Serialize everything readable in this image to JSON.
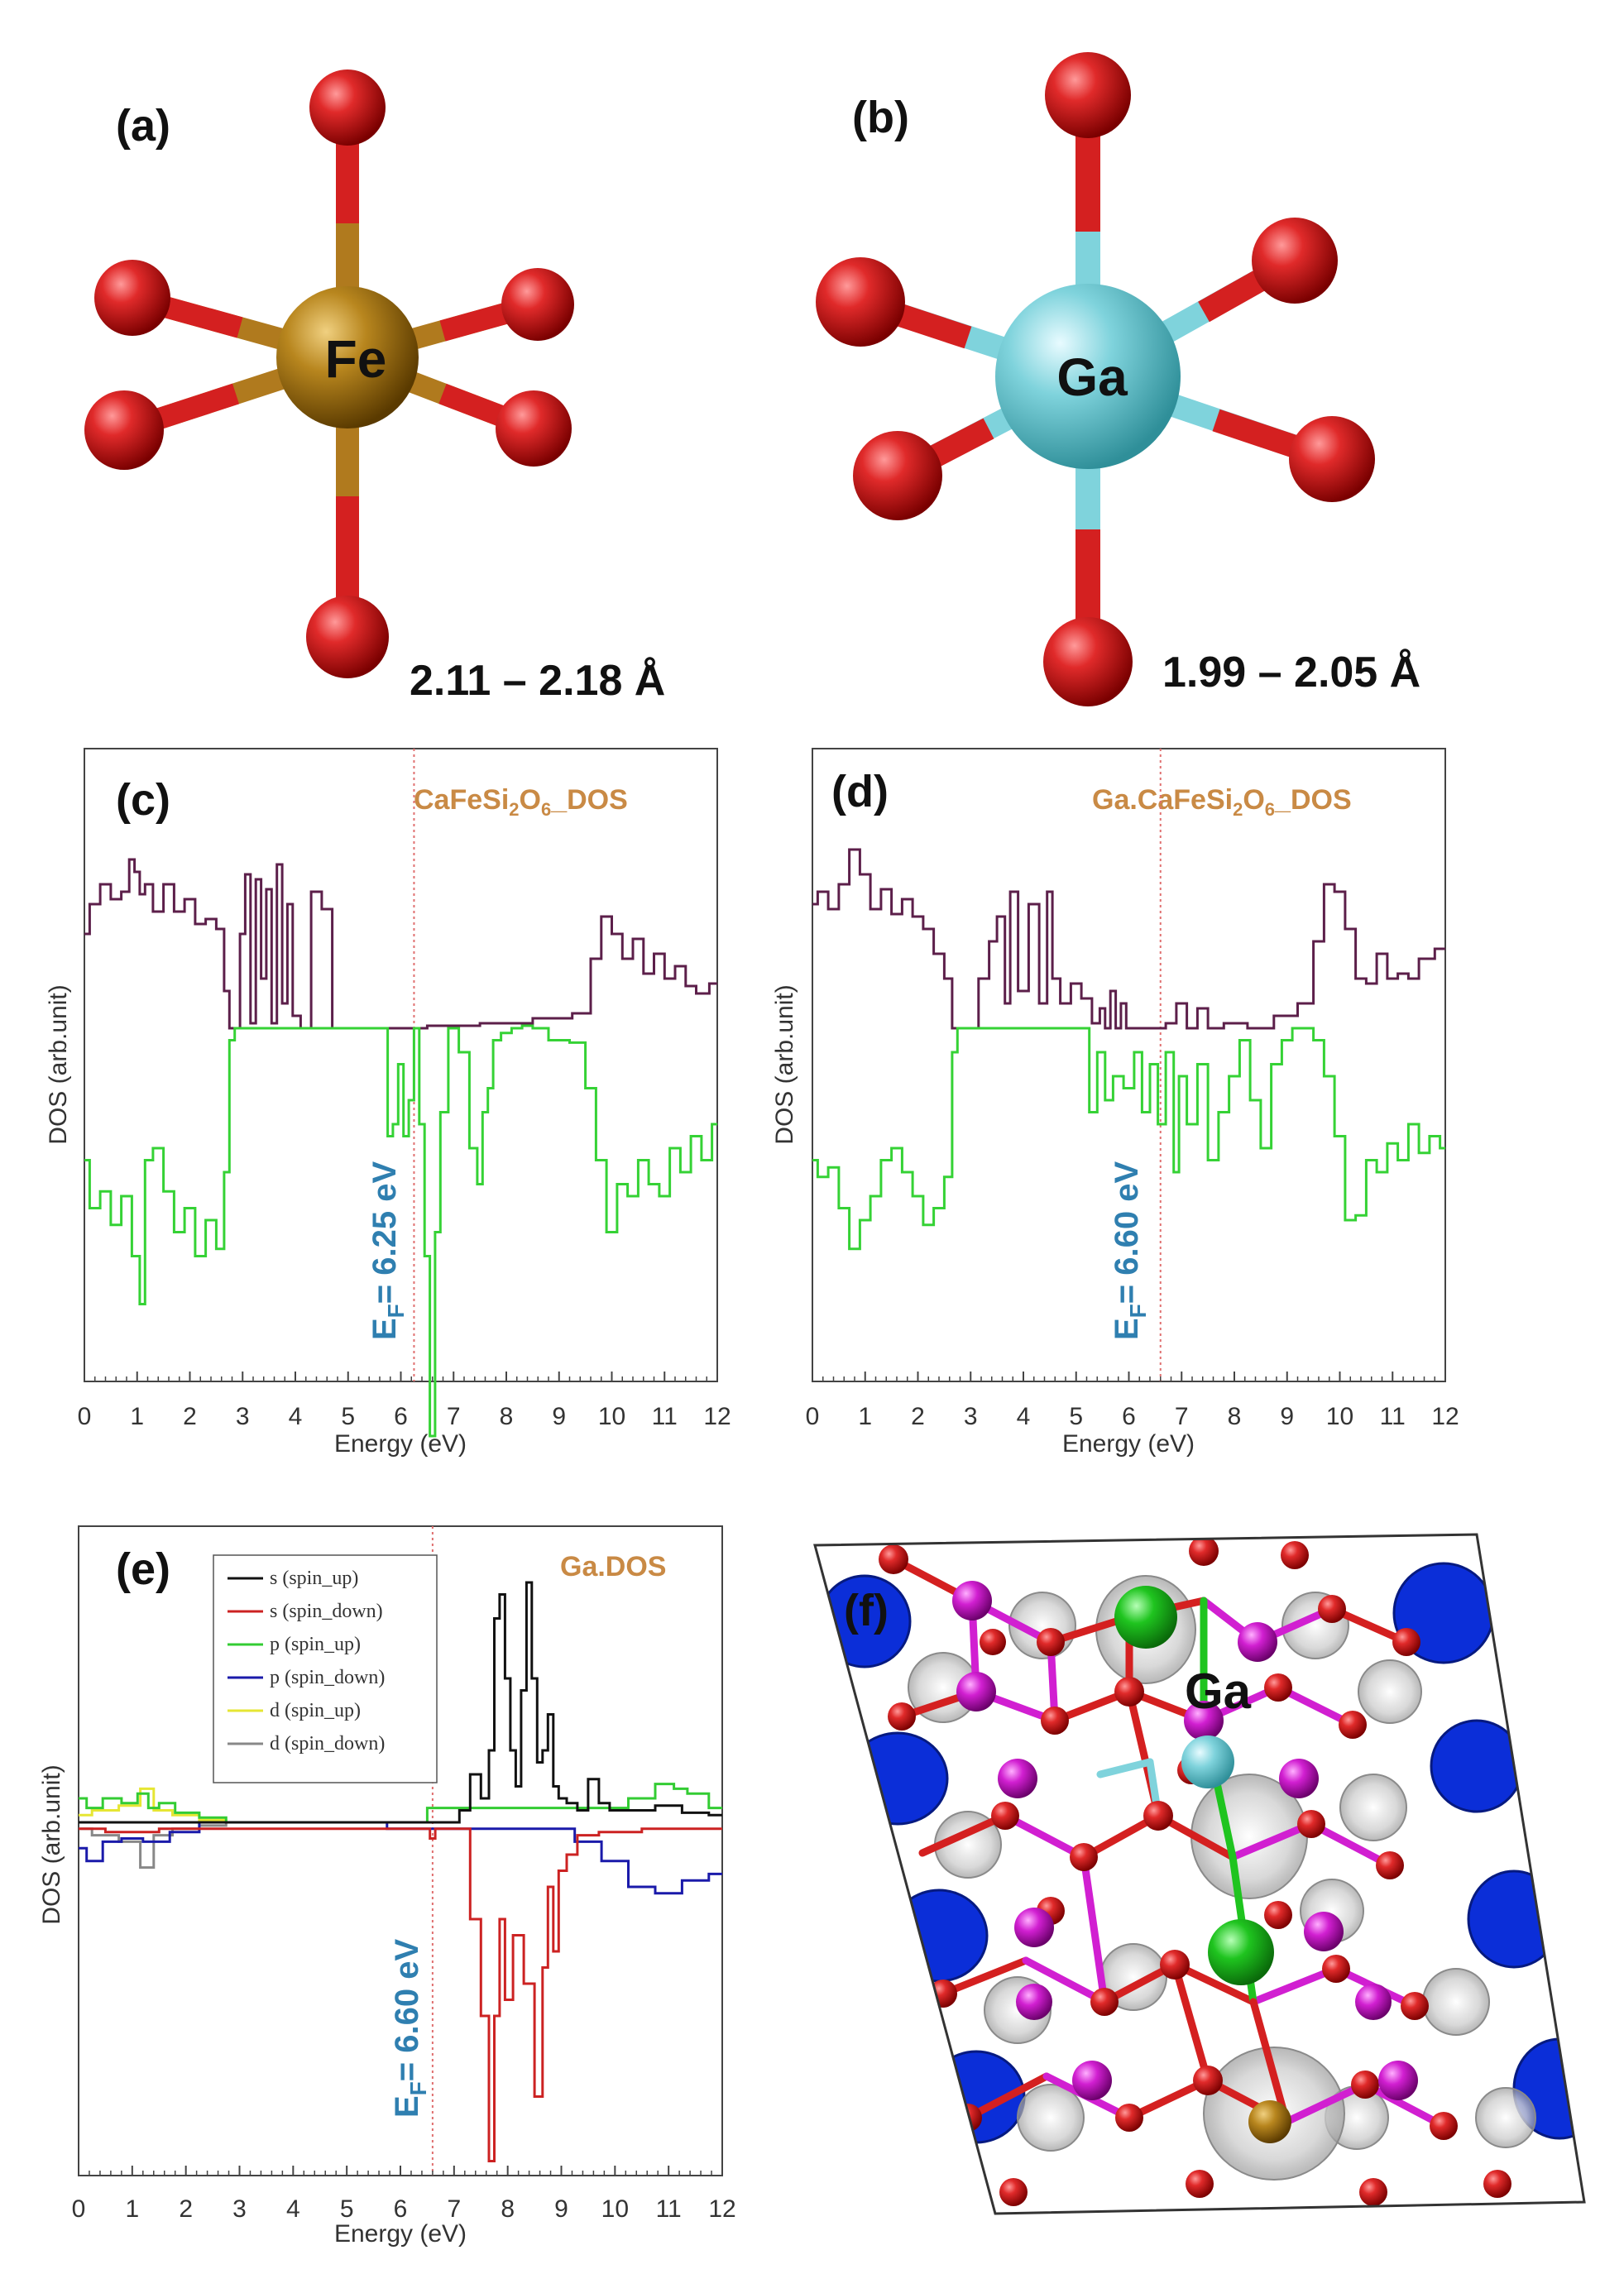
{
  "panels": {
    "a": {
      "label": "(a)",
      "center_atom": "Fe",
      "bond_range": "2.11 – 2.18 Å"
    },
    "b": {
      "label": "(b)",
      "center_atom": "Ga",
      "bond_range": "1.99 – 2.05 Å"
    },
    "c": {
      "label": "(c)",
      "title_main": "CaFeSi",
      "title_sub1": "2",
      "title_mid": "O",
      "title_sub2": "6",
      "title_end": "_DOS",
      "fermi_prefix": "E",
      "fermi_sub": "F",
      "fermi_value": "= 6.25 eV"
    },
    "d": {
      "label": "(d)",
      "title_main": "Ga.CaFeSi",
      "title_sub1": "2",
      "title_mid": "O",
      "title_sub2": "6",
      "title_end": "_DOS",
      "fermi_prefix": "E",
      "fermi_sub": "F",
      "fermi_value": "= 6.60 eV"
    },
    "e": {
      "label": "(e)",
      "title": "Ga.DOS",
      "fermi_prefix": "E",
      "fermi_sub": "F",
      "fermi_value": "= 6.60 eV"
    },
    "f": {
      "label": "(f)",
      "atom_label": "Ga"
    }
  },
  "colors": {
    "fe": "#b07a1e",
    "ga": "#7fd3dc",
    "oxygen": "#d42020",
    "spin_up": "#5c1f4a",
    "spin_down": "#35d235",
    "fermi_line": "#e07070",
    "s_up": "#111111",
    "s_down": "#cc2222",
    "p_up": "#33cc33",
    "p_down": "#1a1aaa",
    "d_up": "#e6e633",
    "d_down": "#888888",
    "ca_green": "#1fc41f",
    "si_magenta": "#d11fd1",
    "density_blue": "#0b2ed8"
  },
  "chart_data": [
    {
      "panel": "c",
      "type": "line",
      "xlabel": "Energy (eV)",
      "ylabel": "DOS (arb.unit)",
      "xlim": [
        0,
        12
      ],
      "xticks": [
        "0",
        "1",
        "2",
        "3",
        "4",
        "5",
        "6",
        "7",
        "8",
        "9",
        "10",
        "11",
        "12"
      ],
      "fermi_level": 6.25,
      "series": [
        {
          "color_key": "spin_up",
          "x": [
            0,
            0.2,
            0.4,
            0.6,
            0.8,
            0.9,
            1.0,
            1.1,
            1.2,
            1.4,
            1.6,
            1.8,
            2.0,
            2.2,
            2.4,
            2.6,
            2.7,
            2.8,
            2.9,
            3.0,
            3.1,
            3.2,
            3.3,
            3.4,
            3.5,
            3.6,
            3.7,
            3.8,
            3.9,
            4.0,
            4.2,
            4.4,
            4.6,
            4.8,
            4.9,
            5.0,
            6.0,
            7.0,
            8.0,
            9.0,
            9.5,
            9.7,
            9.9,
            10.1,
            10.3,
            10.5,
            10.7,
            10.9,
            11.1,
            11.3,
            11.5,
            11.7,
            12.0
          ],
          "y": [
            0.38,
            0.5,
            0.58,
            0.52,
            0.55,
            0.68,
            0.63,
            0.54,
            0.58,
            0.47,
            0.58,
            0.47,
            0.52,
            0.42,
            0.44,
            0.4,
            0.15,
            0.0,
            0.0,
            0.38,
            0.62,
            0.02,
            0.6,
            0.2,
            0.56,
            0.02,
            0.66,
            0.1,
            0.5,
            0.05,
            0.0,
            0.55,
            0.48,
            0.0,
            0.0,
            0.0,
            0.0,
            0.01,
            0.02,
            0.04,
            0.06,
            0.28,
            0.45,
            0.38,
            0.28,
            0.36,
            0.22,
            0.3,
            0.2,
            0.25,
            0.17,
            0.14,
            0.18
          ]
        },
        {
          "color_key": "spin_down",
          "x": [
            0,
            0.2,
            0.4,
            0.6,
            0.8,
            1.0,
            1.1,
            1.2,
            1.4,
            1.6,
            1.8,
            2.0,
            2.2,
            2.4,
            2.6,
            2.7,
            2.8,
            2.9,
            3.0,
            5.7,
            5.8,
            5.9,
            6.0,
            6.1,
            6.2,
            6.3,
            6.4,
            6.5,
            6.6,
            6.7,
            6.8,
            7.0,
            7.2,
            7.4,
            7.5,
            7.6,
            7.7,
            7.8,
            8.0,
            8.2,
            8.4,
            8.6,
            9.0,
            9.4,
            9.6,
            9.8,
            10.0,
            10.2,
            10.4,
            10.6,
            10.8,
            11.0,
            11.2,
            11.4,
            11.6,
            11.8,
            12.0
          ],
          "y": [
            -0.55,
            -0.75,
            -0.68,
            -0.82,
            -0.7,
            -0.95,
            -1.15,
            -0.55,
            -0.5,
            -0.68,
            -0.85,
            -0.75,
            -0.95,
            -0.8,
            -0.92,
            -0.6,
            -0.05,
            0.0,
            0.0,
            0.0,
            -0.45,
            -0.4,
            -0.15,
            -0.45,
            -0.3,
            0.0,
            -0.4,
            -0.95,
            -1.7,
            -0.85,
            -0.35,
            0.0,
            -0.1,
            -0.5,
            -0.65,
            -0.35,
            -0.25,
            -0.05,
            -0.02,
            0.0,
            0.01,
            0.0,
            -0.05,
            -0.06,
            -0.25,
            -0.55,
            -0.85,
            -0.65,
            -0.7,
            -0.55,
            -0.65,
            -0.7,
            -0.5,
            -0.6,
            -0.45,
            -0.55,
            -0.4
          ]
        }
      ]
    },
    {
      "panel": "d",
      "type": "line",
      "xlabel": "Energy (eV)",
      "ylabel": "DOS (arb.unit)",
      "xlim": [
        0,
        12
      ],
      "xticks": [
        "0",
        "1",
        "2",
        "3",
        "4",
        "5",
        "6",
        "7",
        "8",
        "9",
        "10",
        "11",
        "12"
      ],
      "fermi_level": 6.6,
      "series": [
        {
          "color_key": "spin_up",
          "x": [
            0,
            0.2,
            0.4,
            0.6,
            0.8,
            1.0,
            1.2,
            1.4,
            1.6,
            1.8,
            2.0,
            2.2,
            2.4,
            2.6,
            2.7,
            2.8,
            3.0,
            3.3,
            3.4,
            3.6,
            3.7,
            3.8,
            4.0,
            4.2,
            4.4,
            4.5,
            4.6,
            4.8,
            5.0,
            5.2,
            5.4,
            5.5,
            5.6,
            5.7,
            5.8,
            5.9,
            6.0,
            6.2,
            6.6,
            6.8,
            7.0,
            7.2,
            7.4,
            7.6,
            8.0,
            8.5,
            9.0,
            9.4,
            9.6,
            9.8,
            10.0,
            10.2,
            10.4,
            10.6,
            10.8,
            11.0,
            11.2,
            11.4,
            11.6,
            12.0
          ],
          "y": [
            0.5,
            0.55,
            0.48,
            0.58,
            0.72,
            0.62,
            0.48,
            0.56,
            0.46,
            0.52,
            0.45,
            0.4,
            0.3,
            0.2,
            0.0,
            0.0,
            0.0,
            0.2,
            0.35,
            0.45,
            0.1,
            0.55,
            0.15,
            0.5,
            0.1,
            0.55,
            0.2,
            0.1,
            0.18,
            0.12,
            0.02,
            0.08,
            0.0,
            0.15,
            0.0,
            0.1,
            0.0,
            0.0,
            0.0,
            0.02,
            0.1,
            0.0,
            0.08,
            0.0,
            0.02,
            0.0,
            0.05,
            0.1,
            0.35,
            0.58,
            0.55,
            0.4,
            0.2,
            0.18,
            0.3,
            0.2,
            0.22,
            0.2,
            0.28,
            0.32
          ]
        },
        {
          "color_key": "spin_down",
          "x": [
            0,
            0.2,
            0.4,
            0.6,
            0.8,
            1.0,
            1.2,
            1.4,
            1.6,
            1.8,
            2.0,
            2.2,
            2.4,
            2.6,
            2.7,
            2.8,
            3.0,
            5.2,
            5.3,
            5.5,
            5.6,
            5.8,
            6.0,
            6.2,
            6.3,
            6.5,
            6.6,
            6.8,
            6.9,
            7.0,
            7.2,
            7.4,
            7.6,
            7.8,
            8.0,
            8.2,
            8.4,
            8.6,
            8.8,
            9.0,
            9.2,
            9.4,
            9.6,
            9.8,
            10.0,
            10.2,
            10.4,
            10.6,
            10.8,
            11.0,
            11.2,
            11.4,
            11.6,
            11.8,
            12.0
          ],
          "y": [
            -0.55,
            -0.62,
            -0.58,
            -0.75,
            -0.92,
            -0.8,
            -0.7,
            -0.55,
            -0.5,
            -0.6,
            -0.7,
            -0.82,
            -0.75,
            -0.62,
            -0.1,
            0.0,
            0.0,
            0.0,
            -0.35,
            -0.1,
            -0.3,
            -0.2,
            -0.25,
            -0.1,
            -0.35,
            -0.15,
            -0.4,
            -0.1,
            -0.6,
            -0.2,
            -0.4,
            -0.15,
            -0.55,
            -0.35,
            -0.2,
            -0.05,
            -0.3,
            -0.5,
            -0.15,
            -0.05,
            0.0,
            0.0,
            -0.05,
            -0.2,
            -0.45,
            -0.8,
            -0.78,
            -0.55,
            -0.6,
            -0.48,
            -0.55,
            -0.4,
            -0.52,
            -0.45,
            -0.5
          ]
        }
      ]
    },
    {
      "panel": "e",
      "type": "line",
      "xlabel": "Energy (eV)",
      "ylabel": "DOS (arb.unit)",
      "xlim": [
        0,
        12
      ],
      "xticks": [
        "0",
        "1",
        "2",
        "3",
        "4",
        "5",
        "6",
        "7",
        "8",
        "9",
        "10",
        "11",
        "12"
      ],
      "fermi_level": 6.6,
      "series": [
        {
          "name": "s (spin_up)",
          "color_key": "s_up",
          "x": [
            0,
            7.0,
            7.2,
            7.4,
            7.6,
            7.7,
            7.8,
            7.9,
            8.0,
            8.1,
            8.2,
            8.3,
            8.4,
            8.5,
            8.6,
            8.7,
            8.8,
            8.9,
            9.0,
            9.2,
            9.4,
            9.6,
            9.8,
            10.0,
            10.5,
            11.0,
            11.5,
            12.0
          ],
          "y": [
            0.0,
            0.0,
            0.05,
            0.2,
            0.1,
            0.3,
            0.85,
            0.95,
            0.6,
            0.3,
            0.15,
            0.55,
            1.0,
            0.6,
            0.25,
            0.3,
            0.45,
            0.15,
            0.1,
            0.08,
            0.05,
            0.18,
            0.08,
            0.05,
            0.05,
            0.07,
            0.04,
            0.03
          ]
        },
        {
          "name": "s (spin_down)",
          "color_key": "s_down",
          "x": [
            0,
            1.0,
            2.0,
            6.5,
            6.6,
            6.7,
            7.2,
            7.4,
            7.6,
            7.7,
            7.8,
            7.9,
            8.0,
            8.2,
            8.4,
            8.6,
            8.7,
            8.8,
            8.9,
            9.0,
            9.2,
            9.4,
            10.0,
            11.0,
            12.0
          ],
          "y": [
            -0.02,
            -0.03,
            -0.02,
            -0.02,
            -0.05,
            -0.02,
            -0.02,
            -0.3,
            -0.6,
            -1.05,
            -0.6,
            -0.3,
            -0.55,
            -0.35,
            -0.5,
            -0.85,
            -0.45,
            -0.2,
            -0.4,
            -0.15,
            -0.1,
            -0.04,
            -0.03,
            -0.02,
            -0.02
          ]
        },
        {
          "name": "p (spin_up)",
          "color_key": "p_up",
          "x": [
            0,
            0.3,
            0.6,
            1.0,
            1.2,
            1.4,
            1.6,
            2.0,
            2.5,
            3.0,
            10.0,
            10.5,
            11.0,
            11.2,
            11.5,
            12.0
          ],
          "y": [
            0.1,
            0.06,
            0.1,
            0.08,
            0.12,
            0.06,
            0.08,
            0.04,
            0.02,
            0.0,
            0.06,
            0.1,
            0.16,
            0.14,
            0.12,
            0.06
          ]
        },
        {
          "name": "p (spin_down)",
          "color_key": "p_down",
          "x": [
            0,
            0.3,
            0.6,
            1.0,
            1.4,
            2.0,
            2.5,
            9.0,
            9.5,
            10.0,
            10.5,
            11.0,
            11.5,
            12.0
          ],
          "y": [
            -0.08,
            -0.12,
            -0.06,
            -0.05,
            -0.06,
            -0.03,
            0.0,
            -0.02,
            -0.06,
            -0.12,
            -0.2,
            -0.22,
            -0.18,
            -0.16
          ]
        },
        {
          "name": "d (spin_up)",
          "color_key": "d_up",
          "x": [
            0,
            0.5,
            1.0,
            1.3,
            1.5,
            2.0,
            2.5,
            3.0
          ],
          "y": [
            0.03,
            0.05,
            0.07,
            0.14,
            0.05,
            0.03,
            0.01,
            0.0
          ]
        },
        {
          "name": "d (spin_down)",
          "color_key": "d_down",
          "x": [
            0,
            0.5,
            1.0,
            1.3,
            1.5,
            2.0,
            2.5,
            3.0
          ],
          "y": [
            -0.02,
            -0.04,
            -0.06,
            -0.14,
            -0.04,
            -0.02,
            -0.01,
            0.0
          ]
        }
      ]
    }
  ]
}
